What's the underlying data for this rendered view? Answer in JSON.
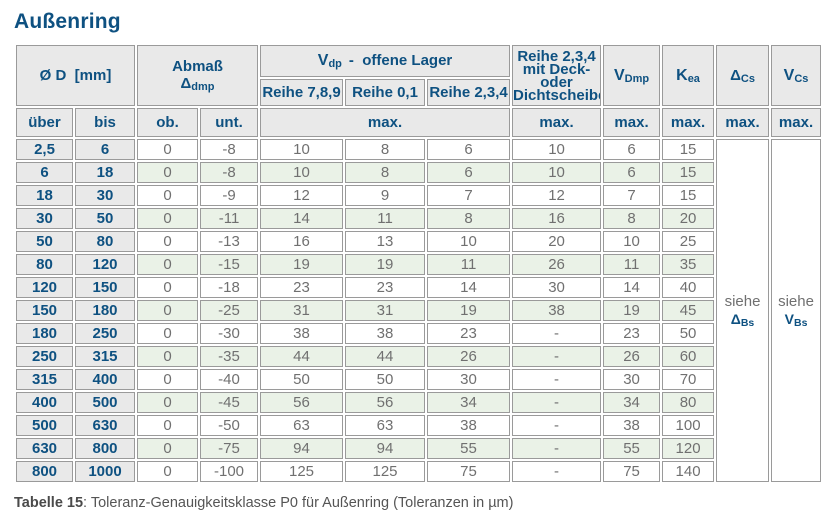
{
  "page_title": "Außenring",
  "colors": {
    "accent_blue": "#0e5181",
    "header_gray": "#e9e9e9",
    "stripe_green": "#eaf2e7",
    "grid_gray": "#9a9a9a",
    "value_gray": "#707070"
  },
  "caption": {
    "bold": "Tabelle 15",
    "rest": ": Toleranz-Genauigkeitsklasse P0 für Außenring (Toleranzen in µm)"
  },
  "table": {
    "header": {
      "diameter": "Ø D  [mm]",
      "abmass_line1": "Abmaß",
      "abmass_base": "Δ",
      "abmass_sub": "dmp",
      "vdp_base": "V",
      "vdp_sub": "dp",
      "vdp_rest": "-  offene Lager",
      "reihe_789": "Reihe 7,8,9",
      "reihe_01": "Reihe 0,1",
      "reihe_234": "Reihe 2,3,4",
      "deck_lines": [
        "Reihe 2,3,4",
        "mit Deck- oder",
        "Dichtscheiben"
      ],
      "vdmp_base": "V",
      "vdmp_sub": "Dmp",
      "kea_base": "K",
      "kea_sub": "ea",
      "dcs_base": "Δ",
      "dcs_sub": "Cs",
      "vcs_base": "V",
      "vcs_sub": "Cs",
      "ueber": "über",
      "bis": "bis",
      "ob": "ob.",
      "unt": "unt.",
      "max": "max."
    },
    "see_delta": {
      "word": "siehe",
      "base": "Δ",
      "sub": "Bs"
    },
    "see_v": {
      "word": "siehe",
      "base": "V",
      "sub": "Bs"
    },
    "rows": [
      {
        "ueber": "2,5",
        "bis": "6",
        "ob": "0",
        "unt": "-8",
        "r789": "10",
        "r01": "8",
        "r234": "6",
        "deck": "10",
        "vdmp": "6",
        "kea": "15"
      },
      {
        "ueber": "6",
        "bis": "18",
        "ob": "0",
        "unt": "-8",
        "r789": "10",
        "r01": "8",
        "r234": "6",
        "deck": "10",
        "vdmp": "6",
        "kea": "15"
      },
      {
        "ueber": "18",
        "bis": "30",
        "ob": "0",
        "unt": "-9",
        "r789": "12",
        "r01": "9",
        "r234": "7",
        "deck": "12",
        "vdmp": "7",
        "kea": "15"
      },
      {
        "ueber": "30",
        "bis": "50",
        "ob": "0",
        "unt": "-11",
        "r789": "14",
        "r01": "11",
        "r234": "8",
        "deck": "16",
        "vdmp": "8",
        "kea": "20"
      },
      {
        "ueber": "50",
        "bis": "80",
        "ob": "0",
        "unt": "-13",
        "r789": "16",
        "r01": "13",
        "r234": "10",
        "deck": "20",
        "vdmp": "10",
        "kea": "25"
      },
      {
        "ueber": "80",
        "bis": "120",
        "ob": "0",
        "unt": "-15",
        "r789": "19",
        "r01": "19",
        "r234": "11",
        "deck": "26",
        "vdmp": "11",
        "kea": "35"
      },
      {
        "ueber": "120",
        "bis": "150",
        "ob": "0",
        "unt": "-18",
        "r789": "23",
        "r01": "23",
        "r234": "14",
        "deck": "30",
        "vdmp": "14",
        "kea": "40"
      },
      {
        "ueber": "150",
        "bis": "180",
        "ob": "0",
        "unt": "-25",
        "r789": "31",
        "r01": "31",
        "r234": "19",
        "deck": "38",
        "vdmp": "19",
        "kea": "45"
      },
      {
        "ueber": "180",
        "bis": "250",
        "ob": "0",
        "unt": "-30",
        "r789": "38",
        "r01": "38",
        "r234": "23",
        "deck": "-",
        "vdmp": "23",
        "kea": "50"
      },
      {
        "ueber": "250",
        "bis": "315",
        "ob": "0",
        "unt": "-35",
        "r789": "44",
        "r01": "44",
        "r234": "26",
        "deck": "-",
        "vdmp": "26",
        "kea": "60"
      },
      {
        "ueber": "315",
        "bis": "400",
        "ob": "0",
        "unt": "-40",
        "r789": "50",
        "r01": "50",
        "r234": "30",
        "deck": "-",
        "vdmp": "30",
        "kea": "70"
      },
      {
        "ueber": "400",
        "bis": "500",
        "ob": "0",
        "unt": "-45",
        "r789": "56",
        "r01": "56",
        "r234": "34",
        "deck": "-",
        "vdmp": "34",
        "kea": "80"
      },
      {
        "ueber": "500",
        "bis": "630",
        "ob": "0",
        "unt": "-50",
        "r789": "63",
        "r01": "63",
        "r234": "38",
        "deck": "-",
        "vdmp": "38",
        "kea": "100"
      },
      {
        "ueber": "630",
        "bis": "800",
        "ob": "0",
        "unt": "-75",
        "r789": "94",
        "r01": "94",
        "r234": "55",
        "deck": "-",
        "vdmp": "55",
        "kea": "120"
      },
      {
        "ueber": "800",
        "bis": "1000",
        "ob": "0",
        "unt": "-100",
        "r789": "125",
        "r01": "125",
        "r234": "75",
        "deck": "-",
        "vdmp": "75",
        "kea": "140"
      }
    ]
  }
}
